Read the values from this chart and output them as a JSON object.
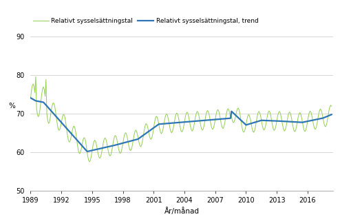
{
  "title": "",
  "ylabel": "%",
  "xlabel": "År/månad",
  "legend_labels": [
    "Relativt sysselsättningstal",
    "Relativt sysselsättningstal, trend"
  ],
  "line_color_raw": "#92d050",
  "line_color_trend": "#2e75b6",
  "ylim": [
    50,
    92
  ],
  "yticks": [
    50,
    60,
    70,
    80,
    90
  ],
  "xticks": [
    1989,
    1992,
    1995,
    1998,
    2001,
    2004,
    2007,
    2010,
    2013,
    2016
  ],
  "grid_color": "#c8c8c8",
  "background_color": "#ffffff",
  "start_year": 1989,
  "end_year": 2018,
  "end_month": 5
}
